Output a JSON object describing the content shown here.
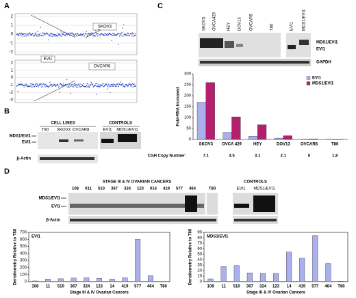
{
  "panels": {
    "a": {
      "label": "A",
      "top_tag": "SKOV3",
      "bottom_tags": [
        "EVI1",
        "OVCAR8"
      ],
      "top_yticks": [
        2,
        1,
        0,
        -1,
        -2
      ],
      "bottom_yticks": [
        2,
        1,
        0,
        -1,
        -2,
        -3
      ]
    },
    "b": {
      "label": "B",
      "groups": [
        "CELL LINES",
        "CONTROLS"
      ],
      "lanes": [
        "T80",
        "SKOV3",
        "OVCAR8"
      ],
      "control_lanes": [
        "EVI1",
        "MDS1/EVI1"
      ],
      "bands": [
        "MDS1/EVI1",
        "EVI1",
        "β-Actin"
      ]
    },
    "c": {
      "label": "C",
      "lanes": [
        "SKOV3",
        "OVCA429",
        "HEY",
        "DOV13",
        "OVCAR8",
        "T80"
      ],
      "control_lanes": [
        "EVI1",
        "MDS1/EVI1"
      ],
      "bands": [
        "MDS1/EVI1",
        "EVI1",
        "GAPDH"
      ]
    },
    "d": {
      "label": "D",
      "header": "STAGE III & IV OVARIAN CANCERS",
      "lanes": [
        "108",
        "011",
        "510",
        "367",
        "324",
        "123",
        "014",
        "419",
        "577",
        "464",
        "T80"
      ],
      "controls": "CONTROLS",
      "control_lanes": [
        "EVI1",
        "MDS1/EVI1"
      ],
      "bands": [
        "MDS1/EVI1",
        "EVI1",
        "β-Actin"
      ]
    }
  },
  "chart_data": [
    {
      "type": "bar",
      "ylabel": "Fold-RNA Increased",
      "categories": [
        "SKOV3",
        "OVCA 429",
        "HEY",
        "DOV13",
        "OVCAR8",
        "T80"
      ],
      "series": [
        {
          "name": "EVI1",
          "color": "#aab0ec",
          "values": [
            170,
            32,
            15,
            6,
            1,
            1
          ]
        },
        {
          "name": "MDS1/EVI1",
          "color": "#b5206e",
          "values": [
            260,
            103,
            67,
            17,
            2,
            1
          ]
        }
      ],
      "ylim": [
        0,
        300
      ],
      "yticks": [
        0,
        50,
        100,
        150,
        200,
        250,
        300
      ],
      "legend": "upper right",
      "cgh_label": "CGH Copy Number:",
      "cgh_values": [
        7.1,
        4.5,
        3.1,
        2.1,
        0,
        1.8
      ]
    },
    {
      "type": "bar",
      "title": "EVI1",
      "ylabel": "Densitometry Relative to T80",
      "xlabel": "Stage III & IV Ovarian Cancers",
      "categories": [
        "108",
        "11",
        "510",
        "367",
        "324",
        "123",
        "14",
        "419",
        "577",
        "464",
        "T80"
      ],
      "color": "#aab0ec",
      "values": [
        10,
        35,
        40,
        50,
        55,
        45,
        35,
        55,
        600,
        85,
        2
      ],
      "ylim": [
        0,
        700
      ],
      "yticks": [
        0,
        100,
        200,
        300,
        400,
        500,
        600,
        700
      ]
    },
    {
      "type": "bar",
      "title": "MDS1/EVI1",
      "ylabel": "Densitometry Relative to T80",
      "xlabel": "Stage III & IV Ovarian Cancers",
      "categories": [
        "108",
        "11",
        "510",
        "367",
        "324",
        "123",
        "14",
        "419",
        "577",
        "464",
        "T80"
      ],
      "color": "#aab0ec",
      "values": [
        5,
        28,
        29,
        16,
        15,
        15,
        54,
        43,
        84,
        33,
        1
      ],
      "ylim": [
        0,
        90
      ],
      "yticks": [
        0,
        10,
        20,
        30,
        40,
        50,
        60,
        70,
        80,
        90
      ]
    }
  ]
}
